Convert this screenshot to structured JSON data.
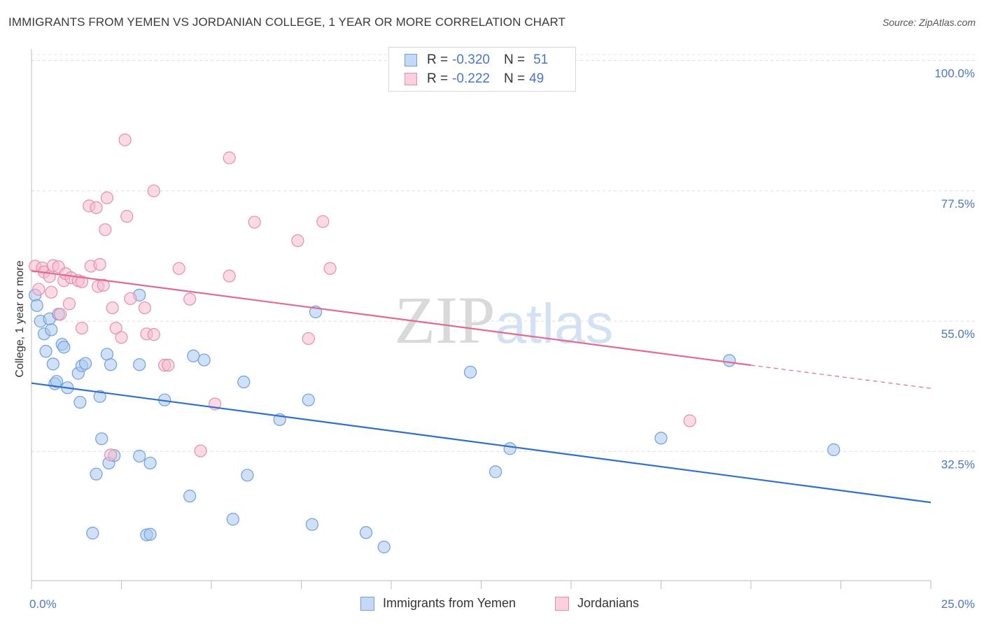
{
  "title": "IMMIGRANTS FROM YEMEN VS JORDANIAN COLLEGE, 1 YEAR OR MORE CORRELATION CHART",
  "source": "Source: ZipAtlas.com",
  "colors": {
    "blue_fill": "#aac8f0",
    "blue_stroke": "#6f9fdc",
    "blue_line": "#2f6fd0",
    "pink_fill": "#f6bccd",
    "pink_stroke": "#e590ab",
    "pink_line": "#e06a93",
    "axis_text": "#4a77c4"
  },
  "legend": {
    "rows": [
      {
        "r_label": "R =",
        "r_value": "-0.320",
        "n_label": "N =",
        "n_value": "51"
      },
      {
        "r_label": "R =",
        "r_value": "-0.222",
        "n_label": "N =",
        "n_value": "49"
      }
    ]
  },
  "bottom_legend": [
    "Immigrants from Yemen",
    "Jordanians"
  ],
  "chart_data": {
    "type": "scatter",
    "title": "IMMIGRANTS FROM YEMEN VS JORDANIAN COLLEGE, 1 YEAR OR MORE CORRELATION CHART",
    "xlabel": "",
    "ylabel": "College, 1 year or more",
    "xlim": [
      0,
      25
    ],
    "ylim": [
      10.2,
      102
    ],
    "x_tick_labels": [
      "0.0%",
      "25.0%"
    ],
    "y_ticks": [
      100,
      77.5,
      55,
      32.5
    ],
    "y_tick_labels": [
      "100.0%",
      "77.5%",
      "55.0%",
      "32.5%"
    ],
    "grid": true,
    "legend_position": "top-center",
    "watermark": "ZIPatlas",
    "series": [
      {
        "name": "Immigrants from Yemen",
        "r": -0.32,
        "n": 51,
        "trend": {
          "x0": 0,
          "y0": 44.3,
          "x1": 25,
          "y1": 23.7
        },
        "points": [
          [
            0.1,
            59.5
          ],
          [
            0.15,
            57.7
          ],
          [
            0.25,
            55
          ],
          [
            0.35,
            52.8
          ],
          [
            0.4,
            49.8
          ],
          [
            0.5,
            55.4
          ],
          [
            0.55,
            53.5
          ],
          [
            0.6,
            47.6
          ],
          [
            0.65,
            44.2
          ],
          [
            0.75,
            56.2
          ],
          [
            0.7,
            44.6
          ],
          [
            0.85,
            51
          ],
          [
            0.9,
            50.5
          ],
          [
            1.0,
            43.5
          ],
          [
            1.3,
            46
          ],
          [
            1.4,
            47.3
          ],
          [
            1.5,
            47.7
          ],
          [
            1.35,
            41
          ],
          [
            1.9,
            42
          ],
          [
            1.95,
            34.7
          ],
          [
            2.1,
            49.3
          ],
          [
            2.2,
            47.5
          ],
          [
            2.15,
            30.5
          ],
          [
            2.3,
            31.8
          ],
          [
            1.8,
            28.6
          ],
          [
            3.0,
            47.5
          ],
          [
            3.0,
            31.7
          ],
          [
            3.3,
            30.5
          ],
          [
            3.0,
            59.5
          ],
          [
            3.7,
            41.4
          ],
          [
            4.5,
            49
          ],
          [
            4.8,
            48.3
          ],
          [
            4.4,
            24.8
          ],
          [
            5.9,
            44.5
          ],
          [
            6.0,
            28.4
          ],
          [
            6.9,
            38
          ],
          [
            7.7,
            41.4
          ],
          [
            7.9,
            56.6
          ],
          [
            5.6,
            20.8
          ],
          [
            7.8,
            19.9
          ],
          [
            1.7,
            18.4
          ],
          [
            3.2,
            18.1
          ],
          [
            3.3,
            18.2
          ],
          [
            9.3,
            18.5
          ],
          [
            9.8,
            16
          ],
          [
            12.2,
            46.2
          ],
          [
            12.9,
            29
          ],
          [
            13.3,
            33
          ],
          [
            17.5,
            34.8
          ],
          [
            19.4,
            48.2
          ],
          [
            22.3,
            32.8
          ]
        ]
      },
      {
        "name": "Jordanians",
        "r": -0.222,
        "n": 49,
        "trend": {
          "x0": 0,
          "y0": 63.7,
          "x1": 20,
          "y1": 47.4,
          "dash_to_x": 25,
          "dash_to_y": 43.4
        },
        "points": [
          [
            0.1,
            64.5
          ],
          [
            0.2,
            60.5
          ],
          [
            0.3,
            64.2
          ],
          [
            0.35,
            63.5
          ],
          [
            0.5,
            62.7
          ],
          [
            0.55,
            60
          ],
          [
            0.6,
            64.6
          ],
          [
            0.8,
            56.2
          ],
          [
            0.75,
            64.4
          ],
          [
            0.9,
            62
          ],
          [
            0.95,
            63.2
          ],
          [
            1.1,
            62.5
          ],
          [
            1.05,
            58
          ],
          [
            1.3,
            62
          ],
          [
            1.4,
            61.8
          ],
          [
            1.4,
            53.8
          ],
          [
            1.6,
            74.9
          ],
          [
            1.8,
            74.6
          ],
          [
            1.65,
            64.5
          ],
          [
            1.85,
            61
          ],
          [
            1.9,
            64.8
          ],
          [
            2.0,
            61.2
          ],
          [
            2.05,
            70.8
          ],
          [
            2.1,
            76.3
          ],
          [
            2.2,
            31.9
          ],
          [
            2.25,
            57.3
          ],
          [
            2.35,
            53.8
          ],
          [
            2.5,
            52.2
          ],
          [
            2.6,
            86.3
          ],
          [
            2.65,
            73.1
          ],
          [
            2.75,
            58.9
          ],
          [
            3.15,
            57.3
          ],
          [
            3.2,
            52.8
          ],
          [
            3.4,
            52.7
          ],
          [
            3.4,
            77.5
          ],
          [
            3.7,
            47.4
          ],
          [
            3.8,
            47.4
          ],
          [
            4.1,
            64.1
          ],
          [
            4.4,
            58.8
          ],
          [
            4.7,
            32.6
          ],
          [
            5.1,
            40.7
          ],
          [
            5.5,
            83.2
          ],
          [
            5.5,
            62.8
          ],
          [
            6.2,
            72.1
          ],
          [
            7.4,
            68.9
          ],
          [
            7.7,
            52
          ],
          [
            8.1,
            72.2
          ],
          [
            8.3,
            64.1
          ],
          [
            18.3,
            37.8
          ]
        ]
      }
    ]
  }
}
